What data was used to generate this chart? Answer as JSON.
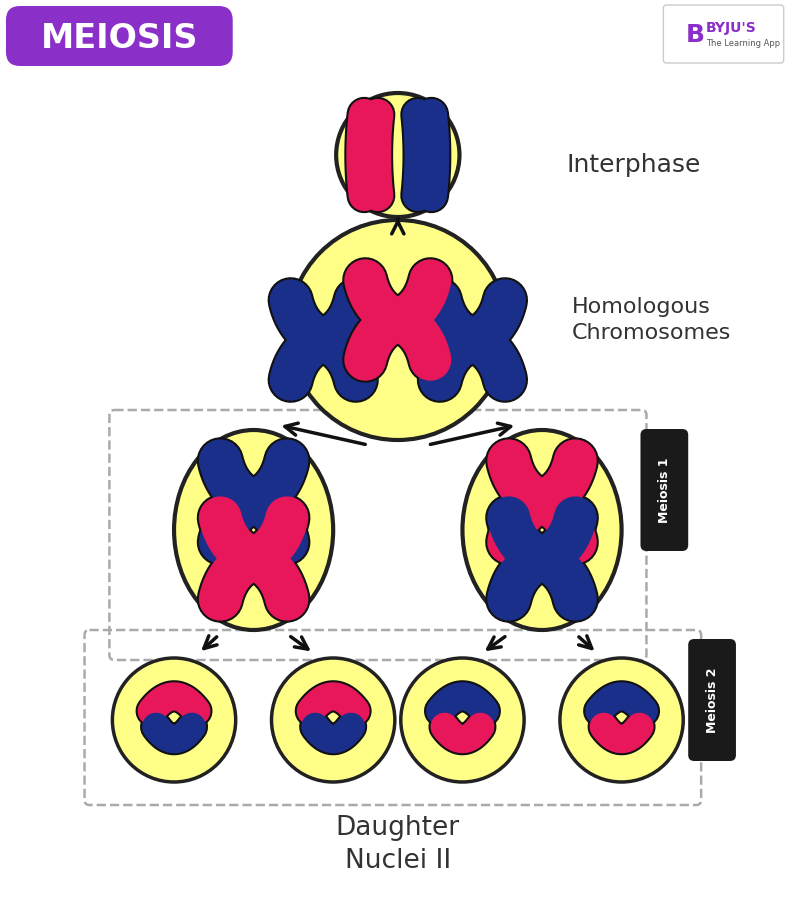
{
  "title": "MEIOSIS",
  "title_bg": "#8B2FC9",
  "bg_color": "#FFFFFF",
  "cell_fill": "#FFFF88",
  "cell_edge": "#222222",
  "label_interphase": "Interphase",
  "label_homologous": "Homologous\nChromosomes",
  "label_meiosis1": "Meiosis 1",
  "label_meiosis2": "Meiosis 2",
  "label_daughter": "Daughter\nNuclei II",
  "label_color": "#333333",
  "pink": "#E8175A",
  "blue": "#1A2F8A",
  "dark": "#111111"
}
